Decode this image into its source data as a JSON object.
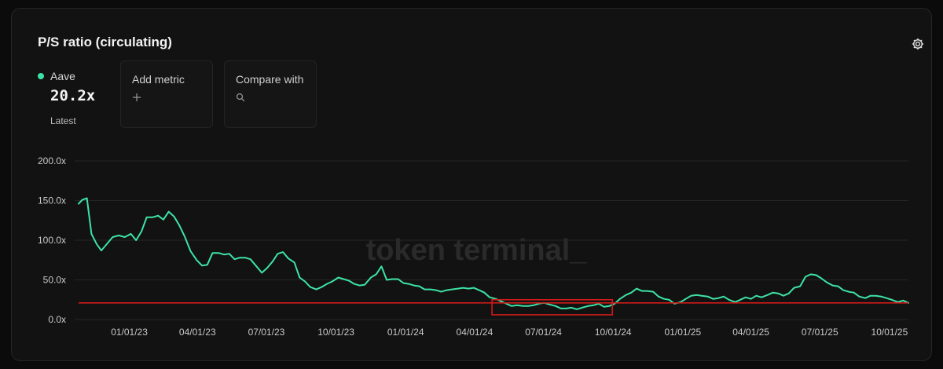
{
  "card": {
    "title": "P/S ratio (circulating)"
  },
  "legend": {
    "name": "Aave",
    "value": "20.2x",
    "sub": "Latest",
    "color": "#3de3a6"
  },
  "controls": {
    "add_metric_label": "Add metric",
    "compare_label": "Compare with"
  },
  "watermark": "token terminal_",
  "icons": {
    "settings": "gear-icon",
    "add": "plus-icon",
    "search": "search-icon"
  },
  "chart_data": {
    "type": "line",
    "grid": true,
    "ylim": [
      0,
      200
    ],
    "y_ticks": [
      "200.0x",
      "150.0x",
      "100.0x",
      "50.0x",
      "0.0x"
    ],
    "y_tick_values": [
      200,
      150,
      100,
      50,
      0
    ],
    "x_ticks": [
      "01/01/23",
      "04/01/23",
      "07/01/23",
      "10/01/23",
      "01/01/24",
      "04/01/24",
      "07/01/24",
      "10/01/24",
      "01/01/25",
      "04/01/25",
      "07/01/25",
      "10/01/25"
    ],
    "x_tick_dates": [
      "2023-01-01",
      "2023-04-01",
      "2023-07-01",
      "2023-10-01",
      "2024-01-01",
      "2024-04-01",
      "2024-07-01",
      "2024-10-01",
      "2025-01-01",
      "2025-04-01",
      "2025-07-01",
      "2025-10-01"
    ],
    "xlim": [
      "2022-10-26",
      "2025-10-26"
    ],
    "series": [
      {
        "name": "Aave",
        "color": "#3de3a6",
        "points": [
          [
            "2022-10-26",
            146
          ],
          [
            "2022-10-31",
            151
          ],
          [
            "2022-11-06",
            153
          ],
          [
            "2022-11-12",
            108
          ],
          [
            "2022-11-19",
            95
          ],
          [
            "2022-11-25",
            87
          ],
          [
            "2022-12-03",
            96
          ],
          [
            "2022-12-10",
            104
          ],
          [
            "2022-12-18",
            106
          ],
          [
            "2022-12-26",
            104
          ],
          [
            "2023-01-03",
            108
          ],
          [
            "2023-01-10",
            100
          ],
          [
            "2023-01-17",
            111
          ],
          [
            "2023-01-24",
            129
          ],
          [
            "2023-02-01",
            129
          ],
          [
            "2023-02-08",
            131
          ],
          [
            "2023-02-15",
            126
          ],
          [
            "2023-02-22",
            136
          ],
          [
            "2023-03-01",
            130
          ],
          [
            "2023-03-08",
            119
          ],
          [
            "2023-03-15",
            105
          ],
          [
            "2023-03-23",
            86
          ],
          [
            "2023-03-31",
            75
          ],
          [
            "2023-04-07",
            68
          ],
          [
            "2023-04-14",
            69
          ],
          [
            "2023-04-21",
            84
          ],
          [
            "2023-04-29",
            84
          ],
          [
            "2023-05-06",
            82
          ],
          [
            "2023-05-13",
            83
          ],
          [
            "2023-05-20",
            76
          ],
          [
            "2023-05-27",
            78
          ],
          [
            "2023-06-03",
            78
          ],
          [
            "2023-06-10",
            76
          ],
          [
            "2023-06-18",
            67
          ],
          [
            "2023-06-25",
            59
          ],
          [
            "2023-07-02",
            65
          ],
          [
            "2023-07-09",
            73
          ],
          [
            "2023-07-16",
            83
          ],
          [
            "2023-07-23",
            85
          ],
          [
            "2023-07-30",
            77
          ],
          [
            "2023-08-07",
            72
          ],
          [
            "2023-08-14",
            53
          ],
          [
            "2023-08-21",
            48
          ],
          [
            "2023-08-28",
            41
          ],
          [
            "2023-09-05",
            38
          ],
          [
            "2023-09-12",
            41
          ],
          [
            "2023-09-19",
            45
          ],
          [
            "2023-09-26",
            48
          ],
          [
            "2023-10-04",
            53
          ],
          [
            "2023-10-11",
            51
          ],
          [
            "2023-10-18",
            49
          ],
          [
            "2023-10-25",
            45
          ],
          [
            "2023-11-01",
            43
          ],
          [
            "2023-11-08",
            44
          ],
          [
            "2023-11-16",
            53
          ],
          [
            "2023-11-23",
            57
          ],
          [
            "2023-11-30",
            67
          ],
          [
            "2023-12-07",
            50
          ],
          [
            "2023-12-14",
            51
          ],
          [
            "2023-12-22",
            51
          ],
          [
            "2023-12-29",
            46
          ],
          [
            "2024-01-05",
            45
          ],
          [
            "2024-01-12",
            43
          ],
          [
            "2024-01-19",
            42
          ],
          [
            "2024-01-26",
            38
          ],
          [
            "2024-02-03",
            38
          ],
          [
            "2024-02-10",
            37
          ],
          [
            "2024-02-17",
            35
          ],
          [
            "2024-02-24",
            37
          ],
          [
            "2024-03-02",
            38
          ],
          [
            "2024-03-10",
            39
          ],
          [
            "2024-03-17",
            40
          ],
          [
            "2024-03-24",
            39
          ],
          [
            "2024-03-31",
            40
          ],
          [
            "2024-04-07",
            37
          ],
          [
            "2024-04-14",
            34
          ],
          [
            "2024-04-21",
            28
          ],
          [
            "2024-04-29",
            26
          ],
          [
            "2024-05-06",
            23
          ],
          [
            "2024-05-13",
            20
          ],
          [
            "2024-05-20",
            17
          ],
          [
            "2024-05-27",
            18
          ],
          [
            "2024-06-04",
            17
          ],
          [
            "2024-06-11",
            17
          ],
          [
            "2024-06-18",
            18
          ],
          [
            "2024-06-25",
            20
          ],
          [
            "2024-07-02",
            21
          ],
          [
            "2024-07-09",
            19
          ],
          [
            "2024-07-17",
            17
          ],
          [
            "2024-07-24",
            14
          ],
          [
            "2024-07-31",
            14
          ],
          [
            "2024-08-07",
            15
          ],
          [
            "2024-08-14",
            13
          ],
          [
            "2024-08-21",
            15
          ],
          [
            "2024-08-29",
            17
          ],
          [
            "2024-09-05",
            18
          ],
          [
            "2024-09-12",
            20
          ],
          [
            "2024-09-19",
            16
          ],
          [
            "2024-09-26",
            17
          ],
          [
            "2024-10-03",
            20
          ],
          [
            "2024-10-10",
            26
          ],
          [
            "2024-10-18",
            31
          ],
          [
            "2024-10-25",
            34
          ],
          [
            "2024-11-01",
            39
          ],
          [
            "2024-11-08",
            36
          ],
          [
            "2024-11-15",
            36
          ],
          [
            "2024-11-23",
            35
          ],
          [
            "2024-11-30",
            29
          ],
          [
            "2024-12-07",
            26
          ],
          [
            "2024-12-14",
            25
          ],
          [
            "2024-12-21",
            20
          ],
          [
            "2024-12-29",
            22
          ],
          [
            "2025-01-05",
            26
          ],
          [
            "2025-01-12",
            30
          ],
          [
            "2025-01-19",
            31
          ],
          [
            "2025-01-26",
            30
          ],
          [
            "2025-02-03",
            29
          ],
          [
            "2025-02-10",
            26
          ],
          [
            "2025-02-17",
            27
          ],
          [
            "2025-02-24",
            29
          ],
          [
            "2025-03-03",
            25
          ],
          [
            "2025-03-11",
            22
          ],
          [
            "2025-03-18",
            25
          ],
          [
            "2025-03-25",
            28
          ],
          [
            "2025-04-01",
            26
          ],
          [
            "2025-04-08",
            30
          ],
          [
            "2025-04-15",
            28
          ],
          [
            "2025-04-23",
            31
          ],
          [
            "2025-04-30",
            34
          ],
          [
            "2025-05-07",
            33
          ],
          [
            "2025-05-14",
            30
          ],
          [
            "2025-05-21",
            33
          ],
          [
            "2025-05-28",
            40
          ],
          [
            "2025-06-05",
            42
          ],
          [
            "2025-06-12",
            54
          ],
          [
            "2025-06-19",
            57
          ],
          [
            "2025-06-26",
            56
          ],
          [
            "2025-07-03",
            52
          ],
          [
            "2025-07-10",
            47
          ],
          [
            "2025-07-18",
            43
          ],
          [
            "2025-07-25",
            42
          ],
          [
            "2025-08-01",
            37
          ],
          [
            "2025-08-08",
            35
          ],
          [
            "2025-08-15",
            34
          ],
          [
            "2025-08-22",
            29
          ],
          [
            "2025-08-30",
            27
          ],
          [
            "2025-09-06",
            30
          ],
          [
            "2025-09-13",
            30
          ],
          [
            "2025-09-20",
            29
          ],
          [
            "2025-09-27",
            27
          ],
          [
            "2025-10-04",
            25
          ],
          [
            "2025-10-12",
            22
          ],
          [
            "2025-10-19",
            24
          ],
          [
            "2025-10-26",
            21
          ]
        ]
      }
    ],
    "annotations": [
      {
        "type": "hline",
        "value": 21,
        "color": "#d11a1a"
      },
      {
        "type": "rect",
        "x_start": "2024-04-24",
        "x_end": "2024-09-30",
        "y_low": 6,
        "y_high": 25,
        "color": "#d11a1a"
      }
    ]
  }
}
